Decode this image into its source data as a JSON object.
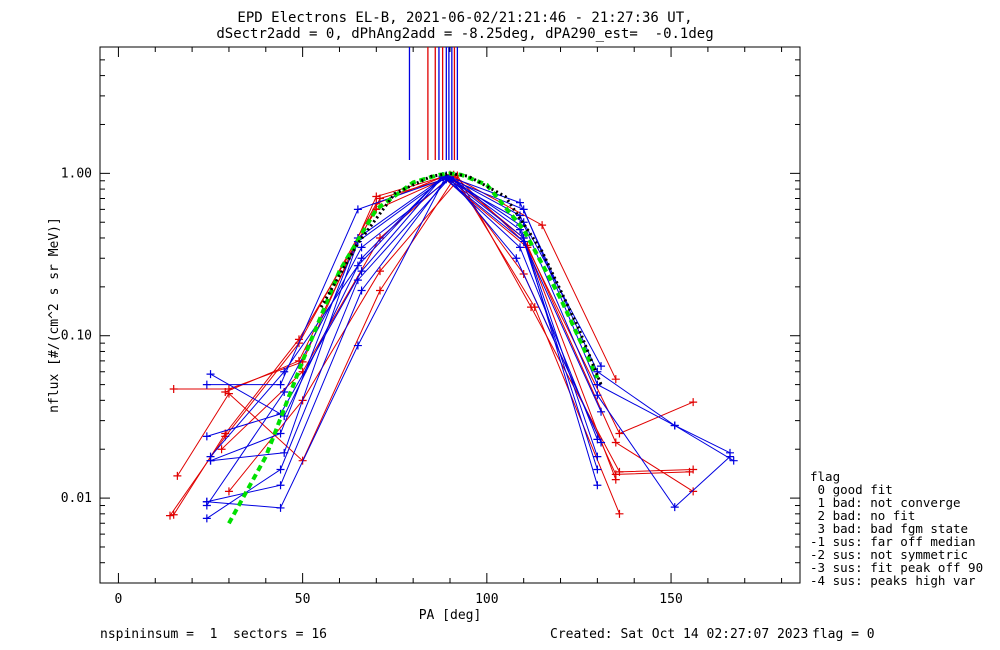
{
  "title_line1": "EPD Electrons EL-B, 2021-06-02/21:21:46 - 21:27:36 UT,",
  "title_line2": "dSectr2add = 0, dPhAng2add = -8.25deg, dPA290_est=  -0.1deg",
  "footer": {
    "left": "nspininsum =  1  sectors = 16",
    "created": "Created: Sat Oct 14 02:27:07 2023",
    "flag": "flag = 0"
  },
  "legend": {
    "title": "flag",
    "items": [
      " 0 good fit",
      " 1 bad: not converge",
      " 2 bad: no fit",
      " 3 bad: bad fgm state",
      "-1 sus: far off median",
      "-2 sus: not symmetric",
      "-3 sus: fit peak off 90",
      "-4 sus: peaks high var"
    ]
  },
  "colors": {
    "red": "#e00000",
    "blue": "#0000e0",
    "green": "#00e000",
    "black": "#000000"
  },
  "chart_data": {
    "type": "line",
    "xlabel": "PA [deg]",
    "ylabel": "nflux [#/(cm^2 s sr MeV)]",
    "xlim": [
      -5,
      185
    ],
    "ylim": [
      0.003,
      6.0
    ],
    "yscale": "log",
    "xticks": [
      0,
      50,
      100,
      150
    ],
    "xtick_labels": [
      "0",
      "50",
      "100",
      "150"
    ],
    "yticks": [
      0.01,
      0.1,
      1.0
    ],
    "ytick_labels": [
      "0.01",
      "0.10",
      "1.00"
    ],
    "vertical_lines": [
      {
        "x": 79,
        "color": "blue"
      },
      {
        "x": 84,
        "color": "red"
      },
      {
        "x": 86,
        "color": "red"
      },
      {
        "x": 87,
        "color": "blue"
      },
      {
        "x": 88,
        "color": "red"
      },
      {
        "x": 89,
        "color": "blue"
      },
      {
        "x": 89.7,
        "color": "blue"
      },
      {
        "x": 90.5,
        "color": "blue"
      },
      {
        "x": 91.2,
        "color": "red"
      },
      {
        "x": 92,
        "color": "blue"
      }
    ],
    "series": [
      {
        "color": "red",
        "x": [
          15,
          30,
          50,
          70,
          90,
          115,
          135
        ],
        "y": [
          0.047,
          0.047,
          0.069,
          0.72,
          0.98,
          0.48,
          0.054
        ]
      },
      {
        "color": "red",
        "x": [
          14,
          29,
          49,
          70,
          88,
          111,
          136,
          156
        ],
        "y": [
          0.0078,
          0.024,
          0.09,
          0.65,
          0.95,
          0.35,
          0.025,
          0.039
        ]
      },
      {
        "color": "red",
        "x": [
          15,
          29,
          49,
          70,
          91,
          111,
          135,
          156
        ],
        "y": [
          0.0079,
          0.025,
          0.095,
          0.6,
          0.98,
          0.36,
          0.022,
          0.011
        ]
      },
      {
        "color": "red",
        "x": [
          16,
          30,
          50,
          71,
          91,
          110,
          135,
          155
        ],
        "y": [
          0.0137,
          0.044,
          0.017,
          0.19,
          0.92,
          0.24,
          0.014,
          0.0145
        ]
      },
      {
        "color": "red",
        "x": [
          29,
          49,
          71,
          92,
          112,
          136,
          156
        ],
        "y": [
          0.045,
          0.07,
          0.7,
          0.97,
          0.15,
          0.0145,
          0.015
        ]
      },
      {
        "color": "red",
        "x": [
          30,
          50,
          71,
          92,
          113,
          136
        ],
        "y": [
          0.011,
          0.04,
          0.25,
          0.9,
          0.15,
          0.008
        ]
      },
      {
        "color": "red",
        "x": [
          28,
          50,
          71,
          90,
          110,
          135
        ],
        "y": [
          0.02,
          0.06,
          0.4,
          0.95,
          0.4,
          0.013
        ]
      },
      {
        "color": "blue",
        "x": [
          24,
          44,
          65,
          90,
          109,
          130,
          151,
          166
        ],
        "y": [
          0.05,
          0.05,
          0.6,
          0.95,
          0.66,
          0.06,
          0.028,
          0.019
        ]
      },
      {
        "color": "blue",
        "x": [
          25,
          45,
          66,
          88,
          110,
          130,
          151,
          167
        ],
        "y": [
          0.058,
          0.032,
          0.3,
          0.96,
          0.6,
          0.05,
          0.028,
          0.017
        ]
      },
      {
        "color": "blue",
        "x": [
          24,
          44,
          65,
          89,
          109,
          130,
          151,
          166
        ],
        "y": [
          0.0095,
          0.0087,
          0.087,
          0.97,
          0.55,
          0.043,
          0.0088,
          0.018
        ]
      },
      {
        "color": "blue",
        "x": [
          24,
          44,
          66,
          88,
          110,
          131
        ],
        "y": [
          0.024,
          0.033,
          0.25,
          0.95,
          0.5,
          0.065
        ]
      },
      {
        "color": "blue",
        "x": [
          24,
          44,
          65,
          90,
          109,
          130
        ],
        "y": [
          0.0075,
          0.015,
          0.22,
          0.94,
          0.48,
          0.012
        ]
      },
      {
        "color": "blue",
        "x": [
          25,
          45,
          65,
          89,
          110,
          130
        ],
        "y": [
          0.017,
          0.019,
          0.38,
          0.95,
          0.4,
          0.018
        ]
      },
      {
        "color": "blue",
        "x": [
          24,
          44,
          66,
          89,
          109,
          130
        ],
        "y": [
          0.0095,
          0.012,
          0.19,
          0.92,
          0.35,
          0.023
        ]
      },
      {
        "color": "blue",
        "x": [
          25,
          45,
          65,
          88,
          110,
          131
        ],
        "y": [
          0.018,
          0.06,
          0.27,
          0.96,
          0.38,
          0.034
        ]
      },
      {
        "color": "blue",
        "x": [
          24,
          45,
          66,
          90,
          108,
          131
        ],
        "y": [
          0.009,
          0.045,
          0.35,
          0.93,
          0.3,
          0.022
        ]
      },
      {
        "color": "blue",
        "x": [
          25,
          44,
          65,
          89,
          109,
          130
        ],
        "y": [
          0.017,
          0.025,
          0.4,
          0.97,
          0.45,
          0.015
        ]
      }
    ],
    "fits": [
      {
        "color": "green",
        "style": "dashed",
        "x": [
          30,
          40,
          50,
          60,
          70,
          80,
          87,
          90,
          93,
          100,
          110,
          120,
          130
        ],
        "y": [
          0.007,
          0.018,
          0.07,
          0.25,
          0.6,
          0.88,
          0.98,
          1.0,
          0.98,
          0.85,
          0.45,
          0.17,
          0.055
        ]
      },
      {
        "color": "black",
        "style": "dotted",
        "x": [
          55,
          65,
          75,
          85,
          90,
          95,
          105,
          115,
          125,
          131
        ],
        "y": [
          0.15,
          0.37,
          0.75,
          0.96,
          1.0,
          0.96,
          0.72,
          0.33,
          0.11,
          0.05
        ]
      }
    ]
  }
}
